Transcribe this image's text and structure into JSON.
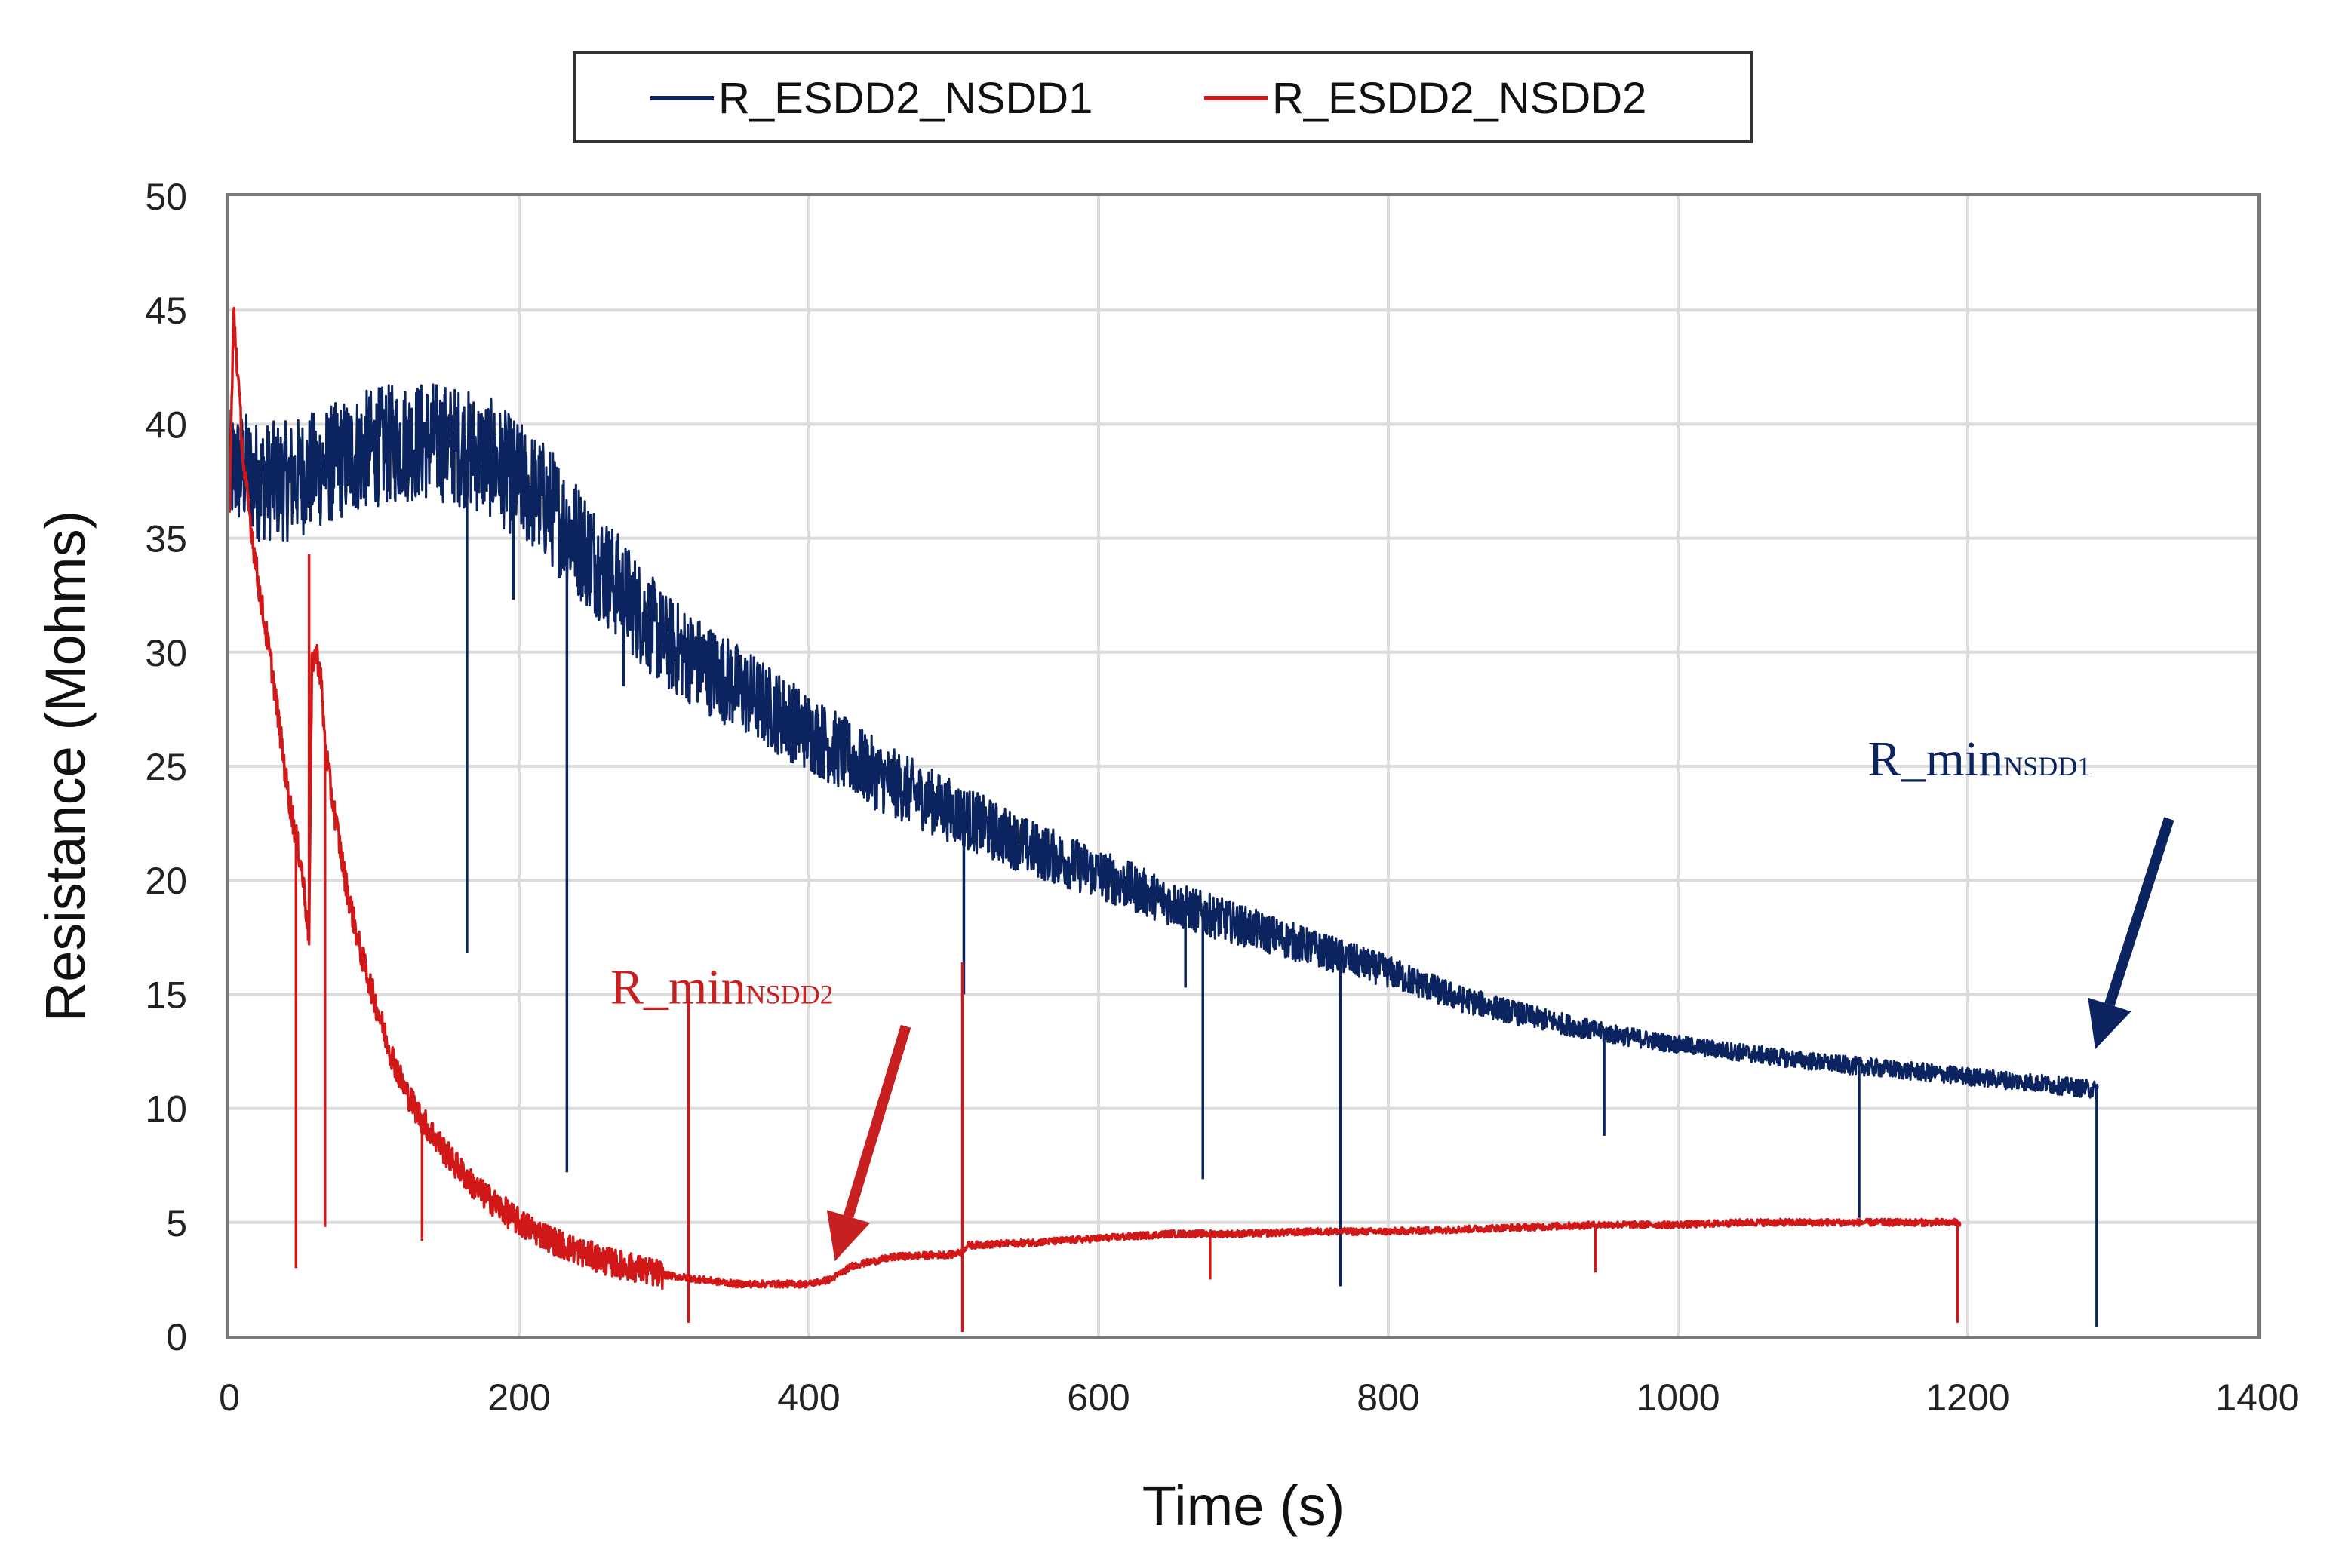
{
  "chart_data": {
    "type": "line",
    "title": "",
    "xlabel": "Time (s)",
    "ylabel": "Resistance (Mohms)",
    "xlim": [
      0,
      1400
    ],
    "ylim": [
      0,
      50
    ],
    "xticks": [
      0,
      200,
      400,
      600,
      800,
      1000,
      1200,
      1400
    ],
    "yticks": [
      0,
      5,
      10,
      15,
      20,
      25,
      30,
      35,
      40,
      45,
      50
    ],
    "grid": true,
    "legend_position": "top-center",
    "series": [
      {
        "name": "R_ESDD2_NSDD1",
        "color": "#0b2460",
        "noise": 2.2,
        "x": [
          0,
          10,
          20,
          40,
          60,
          80,
          100,
          120,
          140,
          160,
          180,
          200,
          220,
          240,
          260,
          280,
          300,
          350,
          400,
          450,
          500,
          550,
          600,
          650,
          700,
          750,
          800,
          850,
          900,
          950,
          1000,
          1050,
          1100,
          1150,
          1200,
          1250,
          1290
        ],
        "values": [
          38,
          38,
          37.5,
          37.5,
          38,
          38.5,
          39,
          39.2,
          39.3,
          39,
          38.5,
          37.5,
          36.5,
          35,
          33.5,
          32,
          30.5,
          28.5,
          26.5,
          24.5,
          23,
          21.5,
          20.3,
          19,
          18,
          17,
          16,
          14.8,
          14,
          13.3,
          12.8,
          12.4,
          12,
          11.7,
          11.4,
          11.1,
          10.8
        ],
        "spikes": [
          {
            "x": 164,
            "to": 16.8
          },
          {
            "x": 196,
            "to": 32.3
          },
          {
            "x": 233,
            "to": 7.2
          },
          {
            "x": 272,
            "to": 28.5
          },
          {
            "x": 507,
            "to": 15
          },
          {
            "x": 660,
            "to": 15.3
          },
          {
            "x": 672,
            "to": 6.9
          },
          {
            "x": 767,
            "to": 2.2
          },
          {
            "x": 949,
            "to": 8.8
          },
          {
            "x": 1125,
            "to": 5.2
          },
          {
            "x": 1289,
            "to": 0.4
          }
        ]
      },
      {
        "name": "R_ESDD2_NSDD2",
        "color": "#d01818",
        "noise": 0.25,
        "x": [
          0,
          3,
          10,
          20,
          30,
          40,
          50,
          55,
          57,
          60,
          63,
          66,
          70,
          80,
          90,
          100,
          110,
          120,
          130,
          150,
          170,
          200,
          230,
          260,
          300,
          350,
          400,
          415,
          430,
          460,
          500,
          505,
          510,
          550,
          600,
          650,
          700,
          750,
          800,
          850,
          900,
          950,
          1000,
          1050,
          1100,
          1150,
          1195
        ],
        "values": [
          36,
          45,
          38,
          33,
          29,
          24,
          20.5,
          17.5,
          29.5,
          30,
          29,
          26,
          24,
          20,
          17,
          14.8,
          12.7,
          11,
          9.8,
          8,
          6.5,
          5,
          4,
          3.3,
          2.7,
          2.3,
          2.3,
          2.5,
          3.1,
          3.5,
          3.6,
          3.7,
          4,
          4.1,
          4.3,
          4.5,
          4.5,
          4.6,
          4.6,
          4.7,
          4.8,
          4.9,
          4.9,
          5,
          5,
          5,
          5
        ],
        "spikes": [
          {
            "x": 46,
            "to": 3
          },
          {
            "x": 55,
            "to": 34.3,
            "up": true
          },
          {
            "x": 66,
            "to": 4.8
          },
          {
            "x": 133,
            "to": 4.2
          },
          {
            "x": 317,
            "to": 14.6,
            "up": true
          },
          {
            "x": 317,
            "to": 0.6
          },
          {
            "x": 506,
            "to": 16.4,
            "up": true
          },
          {
            "x": 506,
            "to": 0.2
          },
          {
            "x": 677,
            "to": 2.5
          },
          {
            "x": 943,
            "to": 2.8
          },
          {
            "x": 1193,
            "to": 0.6
          }
        ]
      }
    ],
    "annotations": [
      {
        "text": "R_min",
        "subscript": "NSDD2",
        "color": "#c82020",
        "label_at": [
          263,
          14.6
        ],
        "arrow_from": [
          467,
          13.6
        ],
        "arrow_to": [
          418,
          3.3
        ]
      },
      {
        "text": "R_min",
        "subscript": "NSDD1",
        "color": "#0b2460",
        "label_at": [
          1131,
          24.6
        ],
        "arrow_from": [
          1339,
          22.7
        ],
        "arrow_to": [
          1288,
          12.6
        ]
      }
    ]
  }
}
